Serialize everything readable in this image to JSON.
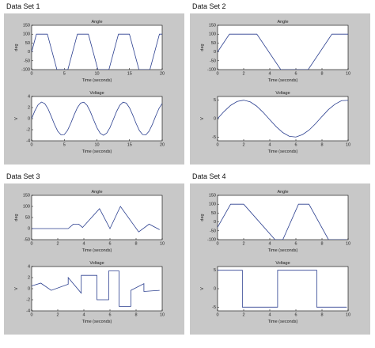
{
  "headings": [
    "Data Set 1",
    "Data Set 2",
    "Data Set 3",
    "Data Set 4"
  ],
  "chart_data": [
    {
      "type": "line",
      "title": "Angle",
      "xlabel": "Time (seconds)",
      "ylabel": "deg",
      "color": "#2b3f8f",
      "x": [
        0,
        0.73,
        2.41,
        3.87,
        5.55,
        7.01,
        8.69,
        10.15,
        11.84,
        13.3,
        14.98,
        16.44,
        18.12,
        19.58,
        20
      ],
      "values": [
        0,
        100,
        100,
        -100,
        -100,
        100,
        100,
        -100,
        -100,
        100,
        100,
        -100,
        -100,
        100,
        100
      ],
      "xlim": [
        0,
        20
      ],
      "ylim": [
        -100,
        150
      ],
      "xticks": [
        0,
        5,
        10,
        15,
        20
      ],
      "yticks": [
        -100,
        -50,
        0,
        50,
        100,
        150
      ]
    },
    {
      "type": "line",
      "title": "Voltage",
      "xlabel": "Time (seconds)",
      "ylabel": "V",
      "color": "#2b3f8f",
      "x": [
        0,
        0.5,
        1,
        1.5,
        2,
        2.5,
        3,
        3.5,
        4,
        4.5,
        5,
        5.5,
        6,
        6.5,
        7,
        7.5,
        8,
        8.5,
        9,
        9.5,
        10,
        10.5,
        11,
        11.5,
        12,
        12.5,
        13,
        13.5,
        14,
        14.5,
        15,
        15.5,
        16,
        16.5,
        17,
        17.5,
        18,
        18.5,
        19,
        19.5,
        20
      ],
      "values": [
        0,
        1.44,
        2.52,
        2.99,
        2.73,
        1.8,
        0.42,
        -1.05,
        -2.27,
        -2.93,
        -2.88,
        -2.12,
        -0.84,
        0.65,
        1.97,
        2.81,
        2.97,
        2.39,
        1.24,
        -0.23,
        -1.63,
        -2.64,
        -3,
        -2.62,
        -1.61,
        -0.2,
        1.26,
        2.41,
        2.97,
        2.8,
        1.95,
        0.62,
        -0.86,
        -2.14,
        -2.88,
        -2.93,
        -2.25,
        -1.03,
        0.45,
        1.82,
        2.74
      ],
      "xlim": [
        0,
        20
      ],
      "ylim": [
        -4,
        4
      ],
      "xticks": [
        0,
        5,
        10,
        15,
        20
      ],
      "yticks": [
        -4,
        -2,
        0,
        2,
        4
      ]
    },
    {
      "type": "line",
      "title": "Angle",
      "xlabel": "Time (seconds)",
      "ylabel": "deg",
      "color": "#2b3f8f",
      "x": [
        0,
        0.91,
        3.01,
        4.84,
        6.94,
        8.76,
        10
      ],
      "values": [
        0,
        100,
        100,
        -100,
        -100,
        100,
        100
      ],
      "xlim": [
        0,
        10
      ],
      "ylim": [
        -100,
        150
      ],
      "xticks": [
        0,
        2,
        4,
        6,
        8,
        10
      ],
      "yticks": [
        -100,
        -50,
        0,
        50,
        100,
        150
      ]
    },
    {
      "type": "line",
      "title": "Voltage",
      "xlabel": "Time (seconds)",
      "ylabel": "V",
      "color": "#2b3f8f",
      "x": [
        0,
        0.5,
        1,
        1.5,
        2,
        2.5,
        3,
        3.5,
        4,
        4.5,
        5,
        5.5,
        6,
        6.5,
        7,
        7.5,
        8,
        8.5,
        9,
        9.5,
        10
      ],
      "values": [
        0,
        1.95,
        3.59,
        4.66,
        5,
        4.55,
        3.38,
        1.68,
        -0.29,
        -2.21,
        -3.78,
        -4.79,
        -4.98,
        -4.34,
        -3.13,
        -1.4,
        0.58,
        2.47,
        3.93,
        4.87,
        4.95
      ],
      "xlim": [
        0,
        10
      ],
      "ylim": [
        -6,
        6
      ],
      "xticks": [
        0,
        2,
        4,
        6,
        8,
        10
      ],
      "yticks": [
        -5,
        0,
        5
      ]
    },
    {
      "type": "line",
      "title": "Angle",
      "xlabel": "Time (seconds)",
      "ylabel": "deg",
      "color": "#2b3f8f",
      "x": [
        0,
        2.8,
        3.2,
        3.6,
        3.9,
        5.2,
        6,
        6.8,
        8.2,
        9,
        9.8
      ],
      "values": [
        0,
        0,
        20,
        20,
        5,
        90,
        0,
        100,
        -15,
        20,
        -5
      ],
      "xlim": [
        0,
        10
      ],
      "ylim": [
        -50,
        150
      ],
      "xticks": [
        0,
        2,
        4,
        6,
        8,
        10
      ],
      "yticks": [
        -50,
        0,
        50,
        100,
        150
      ]
    },
    {
      "type": "line",
      "title": "Voltage",
      "xlabel": "Time (seconds)",
      "ylabel": "V",
      "color": "#2b3f8f",
      "x": [
        0,
        0.7,
        1.5,
        2.8,
        2.8,
        3.8,
        3.8,
        5,
        5,
        5.9,
        5.9,
        6.7,
        6.7,
        7.6,
        7.6,
        8.6,
        8.6,
        9.8
      ],
      "values": [
        0.5,
        1,
        -0.3,
        0.8,
        2,
        -0.8,
        2.4,
        2.4,
        -2,
        -2,
        3.2,
        3.2,
        -3.2,
        -3.2,
        -0.3,
        0.9,
        -0.5,
        -0.3
      ],
      "xlim": [
        0,
        10
      ],
      "ylim": [
        -4,
        4
      ],
      "xticks": [
        0,
        2,
        4,
        6,
        8,
        10
      ],
      "yticks": [
        -4,
        -2,
        0,
        2,
        4
      ]
    },
    {
      "type": "line",
      "title": "Angle",
      "xlabel": "Time (seconds)",
      "ylabel": "deg",
      "color": "#2b3f8f",
      "x": [
        0,
        1,
        2,
        4.4,
        5,
        6.2,
        7,
        8.5,
        9.9
      ],
      "values": [
        -30,
        100,
        100,
        -100,
        -100,
        100,
        100,
        -100,
        -100
      ],
      "xlim": [
        0,
        10
      ],
      "ylim": [
        -100,
        150
      ],
      "xticks": [
        0,
        2,
        4,
        6,
        8,
        10
      ],
      "yticks": [
        -100,
        -50,
        0,
        50,
        100,
        150
      ]
    },
    {
      "type": "line",
      "title": "Voltage",
      "xlabel": "Time (seconds)",
      "ylabel": "V",
      "color": "#2b3f8f",
      "x": [
        0,
        1.9,
        1.9,
        4.6,
        4.6,
        7.6,
        7.6,
        9.9
      ],
      "values": [
        5,
        5,
        -5,
        -5,
        5,
        5,
        -5,
        -5
      ],
      "xlim": [
        0,
        10
      ],
      "ylim": [
        -6,
        6
      ],
      "xticks": [
        0,
        2,
        4,
        6,
        8,
        10
      ],
      "yticks": [
        -5,
        0,
        5
      ]
    }
  ]
}
